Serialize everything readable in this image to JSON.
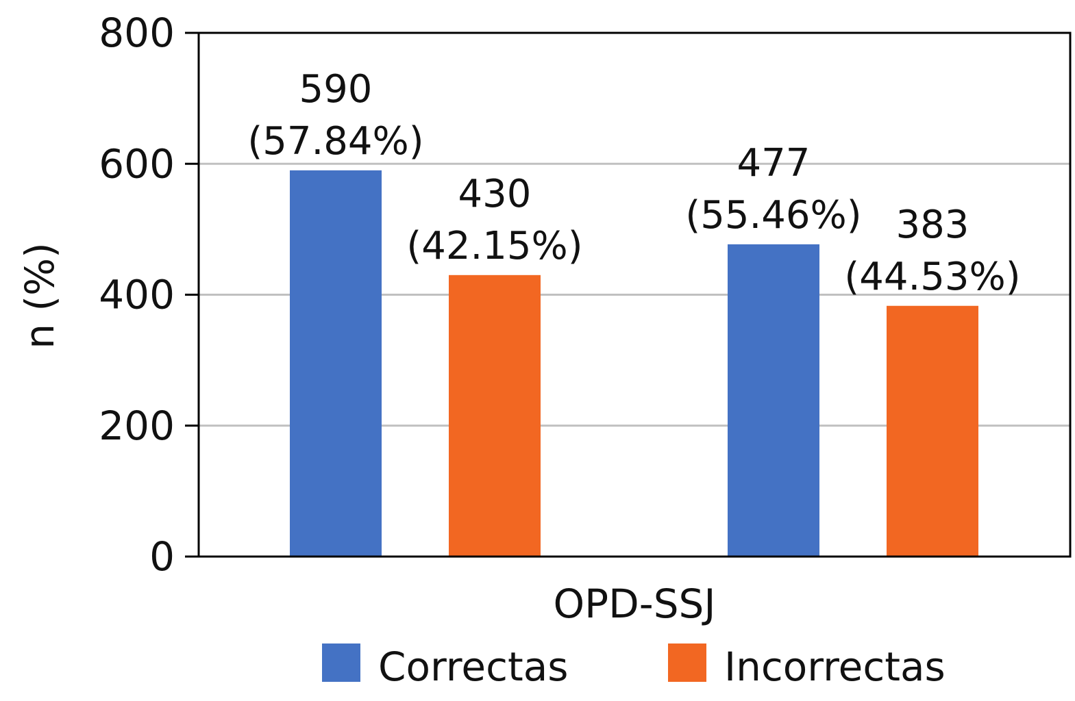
{
  "chart_data": {
    "type": "bar",
    "title": "",
    "xlabel": "OPD-SSJ",
    "ylabel": "n (%)",
    "ylim": [
      0,
      800
    ],
    "yticks": [
      0,
      200,
      400,
      600,
      800
    ],
    "grid": true,
    "legend_position": "bottom",
    "groups": 2,
    "series": [
      {
        "name": "Correctas",
        "color": "#4472C4",
        "values": [
          590,
          477
        ],
        "labels": [
          [
            "590",
            "(57.84%)"
          ],
          [
            "477",
            "(55.46%)"
          ]
        ]
      },
      {
        "name": "Incorrectas",
        "color": "#F26722",
        "values": [
          430,
          383
        ],
        "labels": [
          [
            "430",
            "(42.15%)"
          ],
          [
            "383",
            "(44.53%)"
          ]
        ]
      }
    ]
  }
}
